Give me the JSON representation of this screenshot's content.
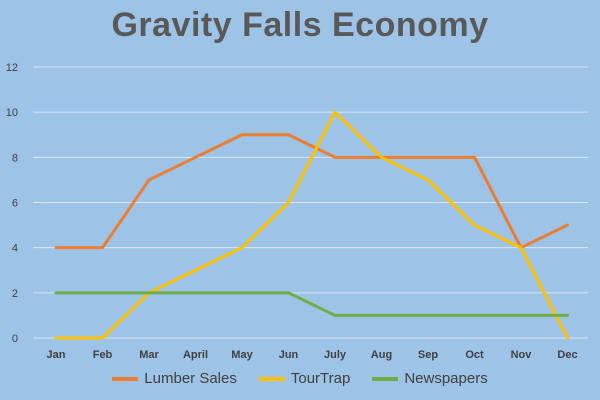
{
  "chart_data": {
    "type": "line",
    "title": "Gravity Falls Economy",
    "categories": [
      "Jan",
      "Feb",
      "Mar",
      "April",
      "May",
      "Jun",
      "July",
      "Aug",
      "Sep",
      "Oct",
      "Nov",
      "Dec"
    ],
    "ylim": [
      0,
      12
    ],
    "yticks": [
      "0",
      "2",
      "4",
      "6",
      "8",
      "10",
      "12"
    ],
    "grid": true,
    "legend_position": "bottom",
    "background": "#9dc3e6",
    "series": [
      {
        "name": "Lumber Sales",
        "color": "#ed7d31",
        "values": [
          4,
          4,
          7,
          8,
          9,
          9,
          8,
          8,
          8,
          8,
          4,
          5
        ]
      },
      {
        "name": "TourTrap",
        "color": "#ffc000",
        "values": [
          0,
          0,
          2,
          3,
          4,
          6,
          10,
          8,
          7,
          5,
          4,
          0
        ]
      },
      {
        "name": "Newspapers",
        "color": "#70ad47",
        "values": [
          2,
          2,
          2,
          2,
          2,
          2,
          1,
          1,
          1,
          1,
          1,
          1
        ]
      }
    ]
  }
}
